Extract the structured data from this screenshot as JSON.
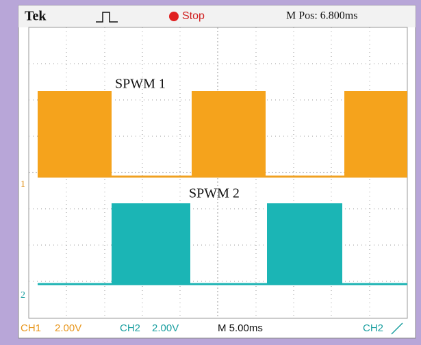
{
  "header": {
    "brand": "Tek",
    "status": "Stop",
    "position": "M Pos: 6.800ms"
  },
  "traces": [
    {
      "label": "SPWM 1",
      "marker": "1"
    },
    {
      "label": "SPWM 2",
      "marker": "2"
    }
  ],
  "footer": {
    "ch1": "CH1",
    "ch1_scale": "2.00V",
    "ch2": "CH2",
    "ch2_scale": "2.00V",
    "timebase": "M 5.00ms",
    "trigger": "CH2"
  }
}
